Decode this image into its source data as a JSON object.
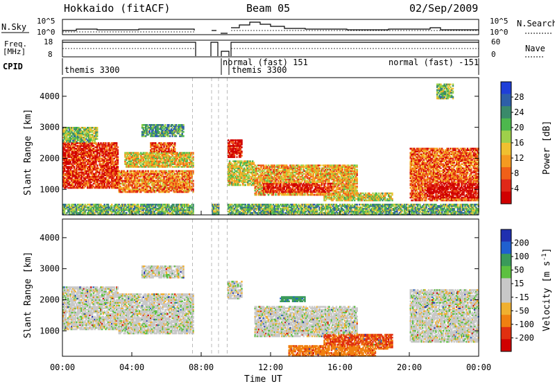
{
  "header": {
    "station": "Hokkaido (fitACF)",
    "beam": "Beam 05",
    "date": "02/Sep/2009"
  },
  "summary_panels": {
    "nsky": {
      "label": "N.Sky",
      "ticks": [
        "10^5",
        "10^0"
      ],
      "legend": "N.Search"
    },
    "freq": {
      "label_top": "Freq.",
      "label_bottom": "[MHz]",
      "left_ticks": [
        "18",
        "8"
      ],
      "right_ticks": [
        "60",
        "0"
      ],
      "legend": "Nave"
    },
    "cpid": {
      "label": "CPID",
      "modes": [
        {
          "text": "themis 3300",
          "start_hr": 0.0
        },
        {
          "text": "normal (fast) 151",
          "start_hr": 9.3
        },
        {
          "text": "themis 3300",
          "start_hr": 9.6
        },
        {
          "text": "normal (fast) -151",
          "start_hr": 19.9
        }
      ]
    }
  },
  "x_axis": {
    "label": "Time UT",
    "ticks": [
      "00:00",
      "04:00",
      "08:00",
      "12:00",
      "16:00",
      "20:00",
      "00:00"
    ],
    "tick_values_hr": [
      0,
      4,
      8,
      12,
      16,
      20,
      24
    ]
  },
  "y_axis": {
    "label": "Slant Range [km]",
    "ticks": [
      "1000",
      "2000",
      "3000",
      "4000"
    ],
    "tick_values_km": [
      1000,
      2000,
      3000,
      4000
    ]
  },
  "power_scale": {
    "label": "Power [dB]",
    "ticks": [
      "28",
      "24",
      "20",
      "16",
      "12",
      "8",
      "4"
    ],
    "colors": [
      "#1f3fd8",
      "#2e5fa8",
      "#3a8a6a",
      "#4db84d",
      "#9fd04a",
      "#f0c030",
      "#f59a20",
      "#f06018",
      "#e02818",
      "#d00000"
    ]
  },
  "velocity_scale": {
    "label_main": "Velocity",
    "label_unit": "[m s",
    "label_exp": "-1",
    "label_close": "]",
    "ticks": [
      "200",
      "100",
      "50",
      "15",
      "-15",
      "-50",
      "-100",
      "-200"
    ],
    "colors": [
      "#2030b0",
      "#2060d0",
      "#3a9a5a",
      "#5cc040",
      "#c8c8c8",
      "#c8c8c8",
      "#f0b030",
      "#f08010",
      "#e03010",
      "#d00000"
    ]
  },
  "chart_data": {
    "type": "heatmap",
    "x_unit": "hours UT",
    "xlim": [
      0,
      24
    ],
    "ylim": [
      180,
      4600
    ],
    "data_gaps_hr": [
      [
        7.5,
        8.6
      ],
      [
        9.0,
        9.5
      ]
    ],
    "power_regions": [
      {
        "t0": 0.0,
        "t1": 3.2,
        "r0": 1000,
        "r1": 2500,
        "level": 0.85
      },
      {
        "t0": 0.0,
        "t1": 2.0,
        "r0": 2500,
        "r1": 3000,
        "level": 0.4
      },
      {
        "t0": 3.2,
        "t1": 7.5,
        "r0": 900,
        "r1": 1600,
        "level": 0.7
      },
      {
        "t0": 3.5,
        "t1": 7.5,
        "r0": 1700,
        "r1": 2200,
        "level": 0.55
      },
      {
        "t0": 5.0,
        "t1": 6.5,
        "r0": 2200,
        "r1": 2500,
        "level": 0.8
      },
      {
        "t0": 4.5,
        "t1": 7.0,
        "r0": 2700,
        "r1": 3100,
        "level": 0.3
      },
      {
        "t0": 9.5,
        "t1": 10.3,
        "r0": 2000,
        "r1": 2600,
        "level": 0.95
      },
      {
        "t0": 9.5,
        "t1": 11.0,
        "r0": 1100,
        "r1": 1900,
        "level": 0.5
      },
      {
        "t0": 11.0,
        "t1": 17.0,
        "r0": 800,
        "r1": 1800,
        "level": 0.6
      },
      {
        "t0": 11.5,
        "t1": 15.5,
        "r0": 900,
        "r1": 1200,
        "level": 0.9
      },
      {
        "t0": 15.0,
        "t1": 19.0,
        "r0": 600,
        "r1": 900,
        "level": 0.5
      },
      {
        "t0": 20.0,
        "t1": 24.0,
        "r0": 600,
        "r1": 2300,
        "level": 0.75
      },
      {
        "t0": 21.0,
        "t1": 24.0,
        "r0": 700,
        "r1": 1200,
        "level": 0.95
      },
      {
        "t0": 21.5,
        "t1": 22.5,
        "r0": 3900,
        "r1": 4400,
        "level": 0.4
      },
      {
        "t0": 0.0,
        "t1": 24.0,
        "r0": 180,
        "r1": 500,
        "level": 0.35
      }
    ],
    "velocity_regions": [
      {
        "t0": 0.0,
        "t1": 3.2,
        "r0": 1000,
        "r1": 2400,
        "vel": 0
      },
      {
        "t0": 3.2,
        "t1": 7.5,
        "r0": 900,
        "r1": 2200,
        "vel": 0
      },
      {
        "t0": 4.5,
        "t1": 7.0,
        "r0": 2700,
        "r1": 3100,
        "vel": 0
      },
      {
        "t0": 9.5,
        "t1": 10.3,
        "r0": 2000,
        "r1": 2600,
        "vel": 0
      },
      {
        "t0": 11.0,
        "t1": 17.0,
        "r0": 800,
        "r1": 1800,
        "vel": 0
      },
      {
        "t0": 15.0,
        "t1": 19.0,
        "r0": 400,
        "r1": 900,
        "vel": -80
      },
      {
        "t0": 13.0,
        "t1": 18.0,
        "r0": 180,
        "r1": 500,
        "vel": -60
      },
      {
        "t0": 20.0,
        "t1": 24.0,
        "r0": 600,
        "r1": 2300,
        "vel": 0
      },
      {
        "t0": 12.5,
        "t1": 14.0,
        "r0": 1900,
        "r1": 2100,
        "vel": 60
      }
    ]
  }
}
